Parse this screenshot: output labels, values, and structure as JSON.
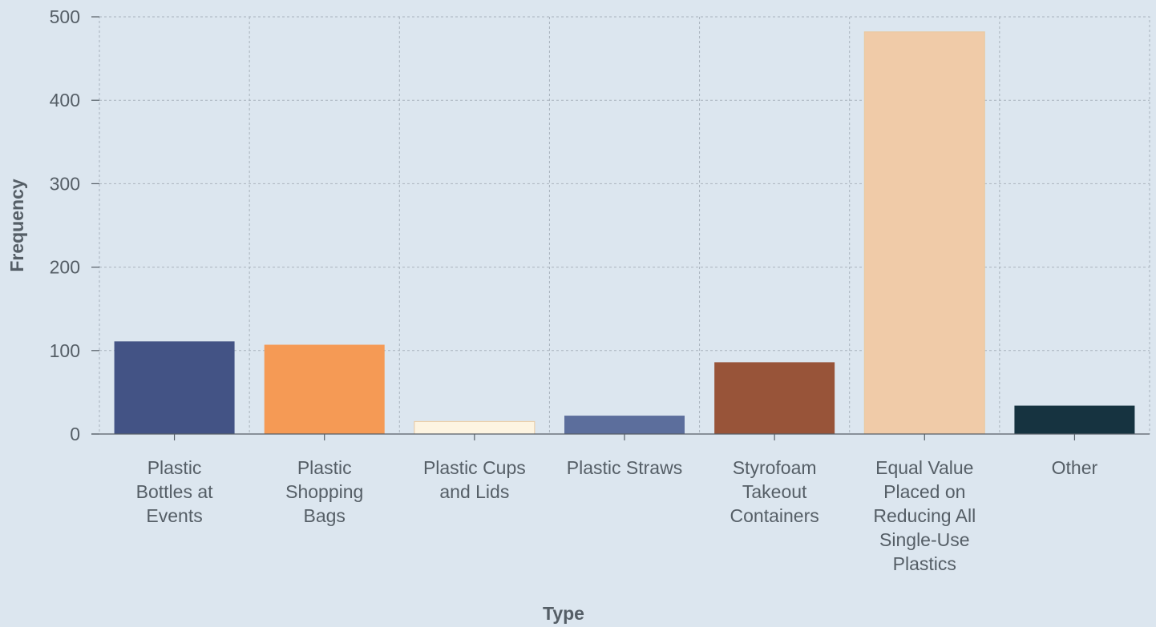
{
  "chart_data": {
    "type": "bar",
    "title": "",
    "xlabel": "Type",
    "ylabel": "Frequency",
    "ylim": [
      0,
      500
    ],
    "yticks": [
      0,
      100,
      200,
      300,
      400,
      500
    ],
    "grid": true,
    "categories": [
      "Plastic Bottles at Events",
      "Plastic Shopping Bags",
      "Plastic Cups and Lids",
      "Plastic Straws",
      "Styrofoam Takeout Containers",
      "Equal Value Placed on Reducing All Single-Use Plastics",
      "Other"
    ],
    "category_label_lines": [
      [
        "Plastic",
        "Bottles at",
        "Events"
      ],
      [
        "Plastic",
        "Shopping",
        "Bags"
      ],
      [
        "Plastic Cups",
        "and Lids"
      ],
      [
        "Plastic Straws"
      ],
      [
        "Styrofoam",
        "Takeout",
        "Containers"
      ],
      [
        "Equal Value",
        "Placed on",
        "Reducing All",
        "Single-Use",
        "Plastics"
      ],
      [
        "Other"
      ]
    ],
    "values": [
      111,
      107,
      15,
      22,
      86,
      482,
      34
    ],
    "colors": [
      "#435385",
      "#f59a55",
      "#fdf4e1",
      "#5c6e9c",
      "#985439",
      "#f0cba8",
      "#163340"
    ],
    "background": "#dce6ef"
  }
}
